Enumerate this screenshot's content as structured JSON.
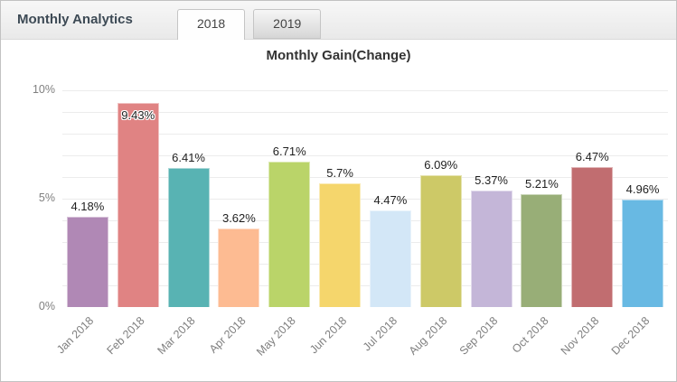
{
  "header": {
    "title": "Monthly Analytics",
    "tabs": [
      {
        "label": "2018",
        "active": true
      },
      {
        "label": "2019",
        "active": false
      }
    ]
  },
  "chart_data": {
    "type": "bar",
    "title": "Monthly Gain(Change)",
    "categories": [
      "Jan 2018",
      "Feb 2018",
      "Mar 2018",
      "Apr 2018",
      "May 2018",
      "Jun 2018",
      "Jul 2018",
      "Aug 2018",
      "Sep 2018",
      "Oct 2018",
      "Nov 2018",
      "Dec 2018"
    ],
    "values": [
      4.18,
      9.43,
      6.41,
      3.62,
      6.71,
      5.7,
      4.47,
      6.09,
      5.37,
      5.21,
      6.47,
      4.96
    ],
    "value_labels": [
      "4.18%",
      "9.43%",
      "6.41%",
      "3.62%",
      "6.71%",
      "5.7%",
      "4.47%",
      "6.09%",
      "5.37%",
      "5.21%",
      "6.47%",
      "4.96%"
    ],
    "bar_colors": [
      "#b088b5",
      "#e08383",
      "#58b3b3",
      "#fdbb92",
      "#bad469",
      "#f5d66c",
      "#d3e7f7",
      "#cdc967",
      "#c4b6d8",
      "#98ae77",
      "#c16d70",
      "#68b9e3"
    ],
    "xlabel": "",
    "ylabel": "",
    "ylim": [
      0,
      10
    ],
    "yticks": [
      "0%",
      "5%",
      "10%"
    ],
    "grid": "horizontal lines every 1%",
    "legend": "none",
    "x_tick_rotation": -45
  }
}
